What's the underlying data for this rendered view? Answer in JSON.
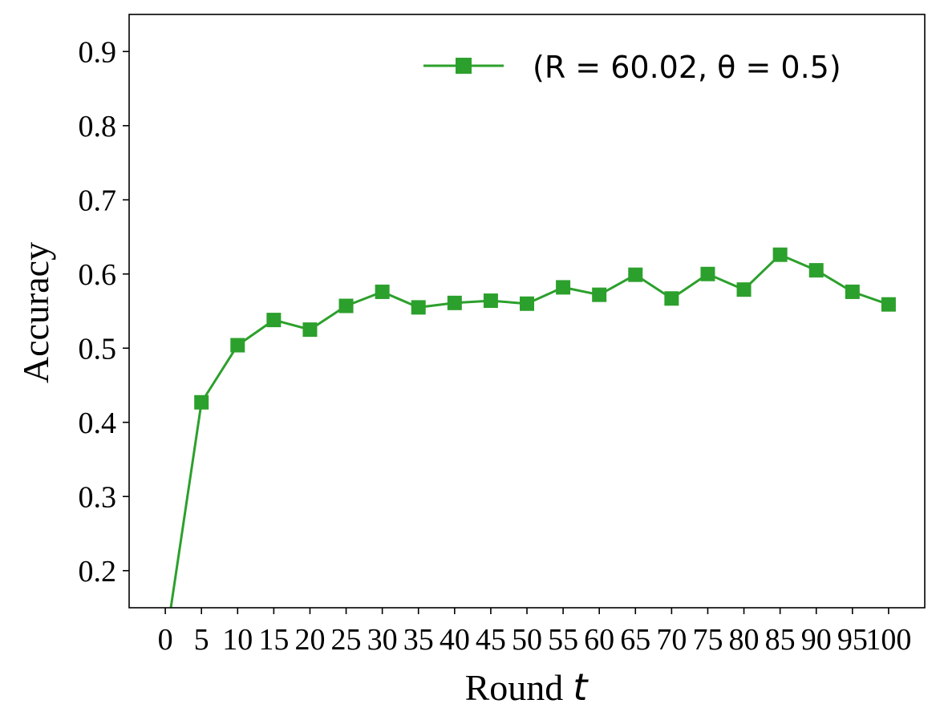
{
  "chart_data": {
    "type": "line",
    "xlabel": "Round",
    "xlabel_var": "t",
    "ylabel": "Accuracy",
    "xlim": [
      -5,
      105
    ],
    "ylim": [
      0.15,
      0.95
    ],
    "x_ticks": [
      0,
      5,
      10,
      15,
      20,
      25,
      30,
      35,
      40,
      45,
      50,
      55,
      60,
      65,
      70,
      75,
      80,
      85,
      90,
      95,
      100
    ],
    "x_tick_labels": [
      "0",
      "5",
      "10",
      "15",
      "20",
      "25",
      "30",
      "35",
      "40",
      "45",
      "50",
      "55",
      "60",
      "65",
      "70",
      "75",
      "80",
      "85",
      "90",
      "95",
      "100"
    ],
    "y_ticks": [
      0.2,
      0.3,
      0.4,
      0.5,
      0.6,
      0.7,
      0.8,
      0.9
    ],
    "y_tick_labels": [
      "0.2",
      "0.3",
      "0.4",
      "0.5",
      "0.6",
      "0.7",
      "0.8",
      "0.9"
    ],
    "grid": false,
    "legend_position": "top-right",
    "series": [
      {
        "name": "(R = 60.02, θ = 0.5)",
        "color": "#2ca02c",
        "marker": "square",
        "x": [
          0,
          5,
          10,
          15,
          20,
          25,
          30,
          35,
          40,
          45,
          50,
          55,
          60,
          65,
          70,
          75,
          80,
          85,
          90,
          95,
          100
        ],
        "y": [
          0.1,
          0.427,
          0.504,
          0.538,
          0.525,
          0.557,
          0.576,
          0.555,
          0.561,
          0.564,
          0.56,
          0.582,
          0.572,
          0.599,
          0.567,
          0.6,
          0.579,
          0.626,
          0.605,
          0.576,
          0.559
        ]
      }
    ]
  }
}
